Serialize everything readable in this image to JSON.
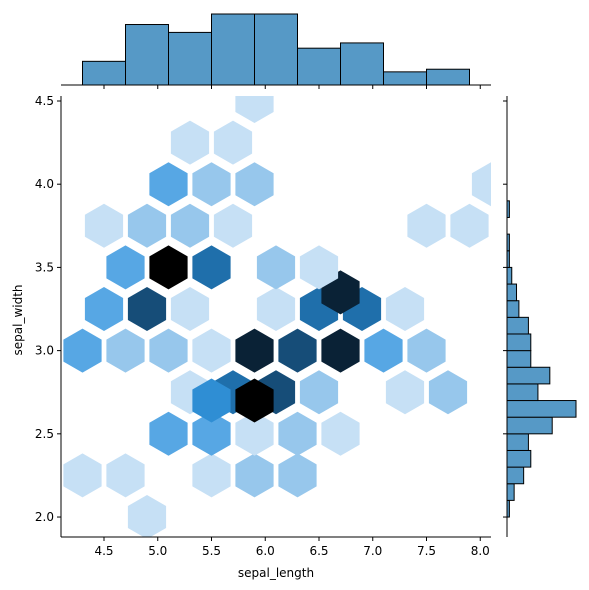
{
  "chart_data": {
    "type": "jointplot-hexbin",
    "xlabel": "sepal_length",
    "ylabel": "sepal_width",
    "xlim": [
      4.1,
      8.1
    ],
    "ylim": [
      1.88,
      4.53
    ],
    "x_ticks": [
      4.5,
      5.0,
      5.5,
      6.0,
      6.5,
      7.0,
      7.5,
      8.0
    ],
    "x_tick_labels": [
      "4.5",
      "5.0",
      "5.5",
      "6.0",
      "6.5",
      "7.0",
      "7.5",
      "8.0"
    ],
    "y_ticks": [
      2.0,
      2.5,
      3.0,
      3.5,
      4.0,
      4.5
    ],
    "y_tick_labels": [
      "2.0",
      "2.5",
      "3.0",
      "3.5",
      "4.0",
      "4.5"
    ],
    "hex_colormap": [
      "#c6e0f5",
      "#97c7ec",
      "#57a7e4",
      "#2f8ed4",
      "#1f6fab",
      "#164d78",
      "#0a2236",
      "#000000"
    ],
    "hex_cells": [
      {
        "x": 4.3,
        "y": 2.25,
        "count": 1
      },
      {
        "x": 4.7,
        "y": 2.25,
        "count": 1
      },
      {
        "x": 5.5,
        "y": 2.25,
        "count": 1
      },
      {
        "x": 5.9,
        "y": 2.25,
        "count": 2
      },
      {
        "x": 6.3,
        "y": 2.25,
        "count": 2
      },
      {
        "x": 4.9,
        "y": 2.0,
        "count": 1
      },
      {
        "x": 5.1,
        "y": 2.5,
        "count": 3
      },
      {
        "x": 5.5,
        "y": 2.5,
        "count": 3
      },
      {
        "x": 5.9,
        "y": 2.5,
        "count": 1
      },
      {
        "x": 6.3,
        "y": 2.5,
        "count": 2
      },
      {
        "x": 6.7,
        "y": 2.5,
        "count": 1
      },
      {
        "x": 5.3,
        "y": 2.75,
        "count": 1
      },
      {
        "x": 5.7,
        "y": 2.75,
        "count": 5
      },
      {
        "x": 6.1,
        "y": 2.75,
        "count": 6
      },
      {
        "x": 6.5,
        "y": 2.75,
        "count": 2
      },
      {
        "x": 7.3,
        "y": 2.75,
        "count": 1
      },
      {
        "x": 7.7,
        "y": 2.75,
        "count": 2
      },
      {
        "x": 5.5,
        "y": 2.7,
        "count": 4
      },
      {
        "x": 5.9,
        "y": 2.7,
        "count": 8
      },
      {
        "x": 4.3,
        "y": 3.0,
        "count": 3
      },
      {
        "x": 4.7,
        "y": 3.0,
        "count": 2
      },
      {
        "x": 5.1,
        "y": 3.0,
        "count": 2
      },
      {
        "x": 5.5,
        "y": 3.0,
        "count": 1
      },
      {
        "x": 5.9,
        "y": 3.0,
        "count": 7
      },
      {
        "x": 6.3,
        "y": 3.0,
        "count": 6
      },
      {
        "x": 6.7,
        "y": 3.0,
        "count": 7
      },
      {
        "x": 7.1,
        "y": 3.0,
        "count": 3
      },
      {
        "x": 7.5,
        "y": 3.0,
        "count": 2
      },
      {
        "x": 4.5,
        "y": 3.25,
        "count": 3
      },
      {
        "x": 4.9,
        "y": 3.25,
        "count": 6
      },
      {
        "x": 5.3,
        "y": 3.25,
        "count": 1
      },
      {
        "x": 6.1,
        "y": 3.25,
        "count": 1
      },
      {
        "x": 6.5,
        "y": 3.25,
        "count": 5
      },
      {
        "x": 6.9,
        "y": 3.25,
        "count": 5
      },
      {
        "x": 7.3,
        "y": 3.25,
        "count": 1
      },
      {
        "x": 6.7,
        "y": 3.35,
        "count": 7
      },
      {
        "x": 4.7,
        "y": 3.5,
        "count": 3
      },
      {
        "x": 5.1,
        "y": 3.5,
        "count": 8
      },
      {
        "x": 5.5,
        "y": 3.5,
        "count": 5
      },
      {
        "x": 6.1,
        "y": 3.5,
        "count": 2
      },
      {
        "x": 6.5,
        "y": 3.5,
        "count": 1
      },
      {
        "x": 4.5,
        "y": 3.75,
        "count": 1
      },
      {
        "x": 4.9,
        "y": 3.75,
        "count": 2
      },
      {
        "x": 5.3,
        "y": 3.75,
        "count": 2
      },
      {
        "x": 5.7,
        "y": 3.75,
        "count": 1
      },
      {
        "x": 7.5,
        "y": 3.75,
        "count": 1
      },
      {
        "x": 7.9,
        "y": 3.75,
        "count": 1
      },
      {
        "x": 5.1,
        "y": 4.0,
        "count": 3
      },
      {
        "x": 5.5,
        "y": 4.0,
        "count": 2
      },
      {
        "x": 5.9,
        "y": 4.0,
        "count": 2
      },
      {
        "x": 8.1,
        "y": 4.0,
        "count": 1
      },
      {
        "x": 5.3,
        "y": 4.25,
        "count": 1
      },
      {
        "x": 5.7,
        "y": 4.25,
        "count": 1
      },
      {
        "x": 5.9,
        "y": 4.5,
        "count": 1
      }
    ],
    "x_hist": {
      "edges": [
        4.3,
        4.7,
        5.1,
        5.5,
        5.9,
        6.3,
        6.7,
        7.1,
        7.5,
        7.9
      ],
      "counts": [
        9,
        23,
        20,
        27,
        27,
        14,
        16,
        5,
        6
      ]
    },
    "y_hist": {
      "edges": [
        2.0,
        2.1,
        2.2,
        2.3,
        2.4,
        2.5,
        2.6,
        2.7,
        2.8,
        2.9,
        3.0,
        3.1,
        3.2,
        3.3,
        3.4,
        3.5,
        3.6,
        3.7,
        3.8,
        3.9,
        4.0,
        4.1,
        4.2,
        4.3,
        4.4
      ],
      "counts": [
        1,
        3,
        7,
        10,
        9,
        19,
        29,
        13,
        18,
        10,
        10,
        9,
        5,
        4,
        2,
        1,
        1,
        0,
        1,
        0,
        0,
        0,
        0,
        0
      ]
    },
    "hist_color": "#5699c6",
    "grid": false
  }
}
